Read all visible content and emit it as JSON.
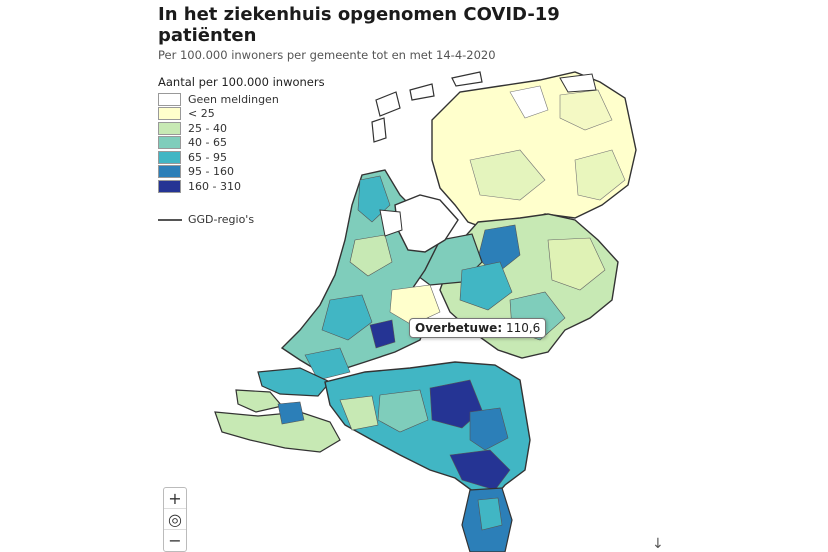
{
  "header": {
    "title": "In het ziekenhuis opgenomen COVID-19 patiënten",
    "subtitle": "Per 100.000 inwoners per gemeente tot en met 14-4-2020"
  },
  "legend": {
    "title": "Aantal per 100.000 inwoners",
    "items": [
      {
        "label": "Geen meldingen",
        "color": "#ffffff"
      },
      {
        "label": "< 25",
        "color": "#ffffcc"
      },
      {
        "label": "25 - 40",
        "color": "#c7e9b4"
      },
      {
        "label": "40 - 65",
        "color": "#7fcdbb"
      },
      {
        "label": "65 - 95",
        "color": "#41b6c4"
      },
      {
        "label": "95 - 160",
        "color": "#2c7fb8"
      },
      {
        "label": "160 - 310",
        "color": "#253494"
      }
    ],
    "boundary_label": "GGD-regio's"
  },
  "tooltip": {
    "region": "Overbetuwe:",
    "value": "110,6"
  },
  "map_controls": {
    "zoom_in": "+",
    "reset": "◎",
    "zoom_out": "−"
  },
  "icons": {
    "download": "↓"
  }
}
